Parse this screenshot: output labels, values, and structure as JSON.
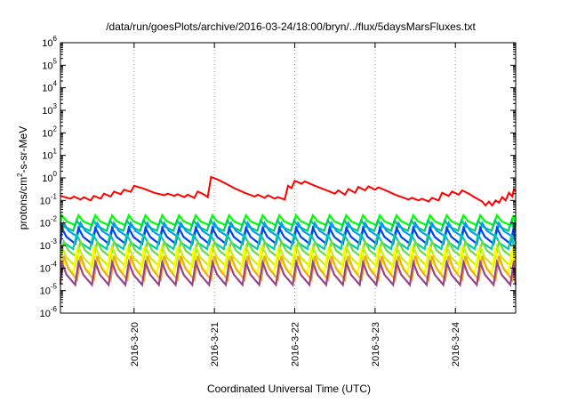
{
  "chart_data": {
    "type": "line",
    "title": "/data/run/goesPlots/archive/2016-03-24/18:00/bryn/../flux/5daysMarsFluxes.txt",
    "xlabel": "Coordinated Universal Time (UTC)",
    "ylabel": "protons/cm2-s-sr-MeV",
    "ylabel_parts": {
      "prefix": "protons/cm",
      "sup": "2",
      "suffix": "-s-sr-MeV"
    },
    "y_scale": "log",
    "ylim": [
      1e-06,
      1000000.0
    ],
    "y_ticks": [
      {
        "base": "10",
        "exp": "-6",
        "value": 1e-06
      },
      {
        "base": "10",
        "exp": "-5",
        "value": 1e-05
      },
      {
        "base": "10",
        "exp": "-4",
        "value": 0.0001
      },
      {
        "base": "10",
        "exp": "-3",
        "value": 0.001
      },
      {
        "base": "10",
        "exp": "-2",
        "value": 0.01
      },
      {
        "base": "10",
        "exp": "-1",
        "value": 0.1
      },
      {
        "base": "10",
        "exp": "0",
        "value": 1.0
      },
      {
        "base": "10",
        "exp": "1",
        "value": 10.0
      },
      {
        "base": "10",
        "exp": "2",
        "value": 100.0
      },
      {
        "base": "10",
        "exp": "3",
        "value": 1000.0
      },
      {
        "base": "10",
        "exp": "4",
        "value": 10000.0
      },
      {
        "base": "10",
        "exp": "5",
        "value": 100000.0
      },
      {
        "base": "10",
        "exp": "6",
        "value": 1000000.0
      }
    ],
    "xlim": [
      "2016-03-19T02:00",
      "2016-03-24T18:00"
    ],
    "x_ticks": [
      {
        "label": "2016-3-20",
        "date": "2016-03-20T00:00"
      },
      {
        "label": "2016-3-21",
        "date": "2016-03-21T00:00"
      },
      {
        "label": "2016-3-22",
        "date": "2016-03-22T00:00"
      },
      {
        "label": "2016-3-23",
        "date": "2016-03-23T00:00"
      },
      {
        "label": "2016-3-24",
        "date": "2016-03-24T00:00"
      }
    ],
    "grid": true,
    "legend": "none",
    "series": [
      {
        "color": "#ff0000",
        "points": [
          [
            "2016-03-19T02:00",
            0.16
          ],
          [
            "2016-03-19T05:00",
            0.12
          ],
          [
            "2016-03-19T06:00",
            0.15
          ],
          [
            "2016-03-19T08:00",
            0.11
          ],
          [
            "2016-03-19T09:00",
            0.14
          ],
          [
            "2016-03-19T11:00",
            0.1
          ],
          [
            "2016-03-19T12:00",
            0.16
          ],
          [
            "2016-03-19T14:00",
            0.12
          ],
          [
            "2016-03-19T15:00",
            0.2
          ],
          [
            "2016-03-19T17:00",
            0.15
          ],
          [
            "2016-03-19T18:00",
            0.25
          ],
          [
            "2016-03-19T20:00",
            0.19
          ],
          [
            "2016-03-19T21:00",
            0.3
          ],
          [
            "2016-03-19T23:00",
            0.24
          ],
          [
            "2016-03-20T00:00",
            0.45
          ],
          [
            "2016-03-20T03:00",
            0.33
          ],
          [
            "2016-03-20T06:00",
            0.22
          ],
          [
            "2016-03-20T09:00",
            0.17
          ],
          [
            "2016-03-20T10:00",
            0.2
          ],
          [
            "2016-03-20T12:00",
            0.16
          ],
          [
            "2016-03-20T13:00",
            0.19
          ],
          [
            "2016-03-20T15:00",
            0.14
          ],
          [
            "2016-03-20T16:00",
            0.18
          ],
          [
            "2016-03-20T18:00",
            0.13
          ],
          [
            "2016-03-20T19:00",
            0.25
          ],
          [
            "2016-03-20T21:00",
            0.18
          ],
          [
            "2016-03-20T22:00",
            0.14
          ],
          [
            "2016-03-20T23:00",
            1.1
          ],
          [
            "2016-03-21T01:00",
            0.85
          ],
          [
            "2016-03-21T03:00",
            0.6
          ],
          [
            "2016-03-21T06:00",
            0.35
          ],
          [
            "2016-03-21T09:00",
            0.22
          ],
          [
            "2016-03-21T12:00",
            0.15
          ],
          [
            "2016-03-21T13:00",
            0.18
          ],
          [
            "2016-03-21T15:00",
            0.13
          ],
          [
            "2016-03-21T16:00",
            0.17
          ],
          [
            "2016-03-21T18:00",
            0.12
          ],
          [
            "2016-03-21T19:00",
            0.14
          ],
          [
            "2016-03-21T21:00",
            0.11
          ],
          [
            "2016-03-21T22:00",
            0.45
          ],
          [
            "2016-03-21T23:00",
            0.35
          ],
          [
            "2016-03-22T00:00",
            0.75
          ],
          [
            "2016-03-22T02:00",
            0.55
          ],
          [
            "2016-03-22T03:00",
            0.7
          ],
          [
            "2016-03-22T06:00",
            0.45
          ],
          [
            "2016-03-22T09:00",
            0.3
          ],
          [
            "2016-03-22T12:00",
            0.2
          ],
          [
            "2016-03-22T13:00",
            0.28
          ],
          [
            "2016-03-22T15:00",
            0.18
          ],
          [
            "2016-03-22T16:00",
            0.32
          ],
          [
            "2016-03-22T18:00",
            0.22
          ],
          [
            "2016-03-22T19:00",
            0.4
          ],
          [
            "2016-03-22T21:00",
            0.28
          ],
          [
            "2016-03-22T22:00",
            0.42
          ],
          [
            "2016-03-23T00:00",
            0.3
          ],
          [
            "2016-03-23T01:00",
            0.38
          ],
          [
            "2016-03-23T04:00",
            0.25
          ],
          [
            "2016-03-23T06:00",
            0.18
          ],
          [
            "2016-03-23T08:00",
            0.14
          ],
          [
            "2016-03-23T10:00",
            0.11
          ],
          [
            "2016-03-23T11:00",
            0.13
          ],
          [
            "2016-03-23T13:00",
            0.1
          ],
          [
            "2016-03-23T14:00",
            0.12
          ],
          [
            "2016-03-23T16:00",
            0.09
          ],
          [
            "2016-03-23T17:00",
            0.13
          ],
          [
            "2016-03-23T19:00",
            0.1
          ],
          [
            "2016-03-23T20:00",
            0.22
          ],
          [
            "2016-03-23T22:00",
            0.16
          ],
          [
            "2016-03-23T23:00",
            0.25
          ],
          [
            "2016-03-24T01:00",
            0.18
          ],
          [
            "2016-03-24T02:00",
            0.28
          ],
          [
            "2016-03-24T04:00",
            0.2
          ],
          [
            "2016-03-24T06:00",
            0.13
          ],
          [
            "2016-03-24T08:00",
            0.09
          ],
          [
            "2016-03-24T09:00",
            0.06
          ],
          [
            "2016-03-24T10:00",
            0.09
          ],
          [
            "2016-03-24T11:00",
            0.06
          ],
          [
            "2016-03-24T12:00",
            0.1
          ],
          [
            "2016-03-24T13:00",
            0.08
          ],
          [
            "2016-03-24T14:00",
            0.14
          ],
          [
            "2016-03-24T15:00",
            0.1
          ],
          [
            "2016-03-24T16:00",
            0.22
          ],
          [
            "2016-03-24T17:00",
            0.15
          ],
          [
            "2016-03-24T17:30",
            0.32
          ],
          [
            "2016-03-24T18:00",
            0.25
          ]
        ]
      },
      {
        "color": "#00ff00",
        "sawtooth": {
          "peak": 0.022,
          "trough": 0.008
        }
      },
      {
        "color": "#00cc66",
        "sawtooth": {
          "peak": 0.013,
          "trough": 0.0045
        }
      },
      {
        "color": "#0099ff",
        "sawtooth": {
          "peak": 0.01,
          "trough": 0.0025
        }
      },
      {
        "color": "#0044ee",
        "sawtooth": {
          "peak": 0.006,
          "trough": 0.0012
        }
      },
      {
        "color": "#00ccaa",
        "sawtooth": {
          "peak": 0.003,
          "trough": 0.0007
        }
      },
      {
        "color": "#66dd44",
        "sawtooth": {
          "peak": 0.0015,
          "trough": 0.0003
        }
      },
      {
        "color": "#ccee00",
        "sawtooth": {
          "peak": 0.0009,
          "trough": 0.00012
        }
      },
      {
        "color": "#ffff00",
        "sawtooth": {
          "peak": 0.0006,
          "trough": 6e-05
        }
      },
      {
        "color": "#eeaa22",
        "sawtooth": {
          "peak": 0.00035,
          "trough": 3e-05
        }
      },
      {
        "color": "#994488",
        "sawtooth": {
          "peak": 0.00018,
          "trough": 1.8e-05
        }
      }
    ],
    "sawtooth_period_hours": 5
  }
}
